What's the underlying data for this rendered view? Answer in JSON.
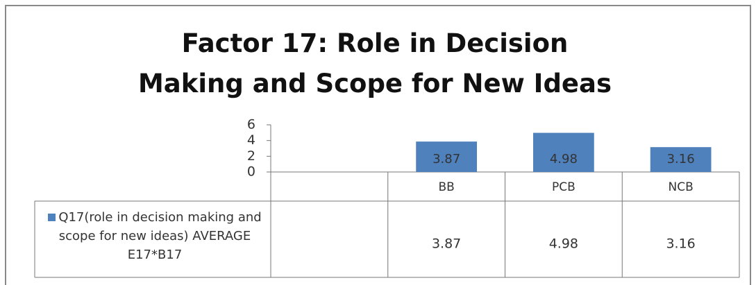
{
  "chart_data": {
    "type": "bar",
    "title": "Factor 17: Role in Decision Making and Scope for New Ideas",
    "categories": [
      null,
      "BB",
      "PCB",
      "NCB"
    ],
    "series": [
      {
        "name": "Q17(role in decision making and scope for new ideas) AVERAGE     E17*B17",
        "color": "#4f81bd",
        "values": [
          null,
          3.87,
          4.98,
          3.16
        ]
      }
    ],
    "ylim": [
      0,
      6
    ],
    "yticks": [
      0,
      2,
      4,
      6
    ],
    "grid": false,
    "data_table": true
  }
}
